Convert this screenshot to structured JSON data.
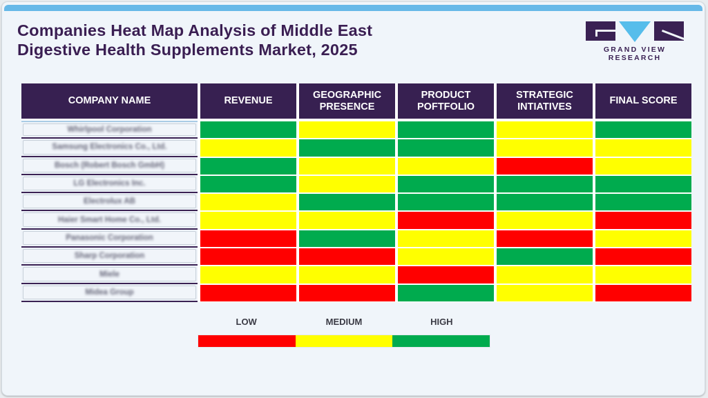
{
  "title": {
    "line1": "Companies Heat Map Analysis of Middle East",
    "line2": "Digestive Health Supplements Market, 2025"
  },
  "logo": {
    "brand": "GRAND VIEW RESEARCH",
    "purple": "#3a2153",
    "accent_blue": "#56bdeb"
  },
  "heatmap": {
    "columns": [
      "COMPANY NAME",
      "REVENUE",
      "GEOGRAPHIC PRESENCE",
      "PRODUCT POFTFOLIO",
      "STRATEGIC INTIATIVES",
      "FINAL SCORE"
    ],
    "levels": {
      "low": "#ff0000",
      "medium": "#ffff00",
      "high": "#00ab4e"
    },
    "rows": [
      {
        "company": "Whirlpool Corporation",
        "values": [
          "high",
          "medium",
          "high",
          "medium",
          "high"
        ]
      },
      {
        "company": "Samsung Electronics Co., Ltd.",
        "values": [
          "medium",
          "high",
          "high",
          "medium",
          "medium"
        ]
      },
      {
        "company": "Bosch (Robert Bosch GmbH)",
        "values": [
          "high",
          "medium",
          "medium",
          "low",
          "medium"
        ]
      },
      {
        "company": "LG Electronics Inc.",
        "values": [
          "high",
          "medium",
          "high",
          "high",
          "high"
        ]
      },
      {
        "company": "Electrolux AB",
        "values": [
          "medium",
          "high",
          "high",
          "high",
          "high"
        ]
      },
      {
        "company": "Haier Smart Home Co., Ltd.",
        "values": [
          "medium",
          "medium",
          "low",
          "medium",
          "low"
        ]
      },
      {
        "company": "Panasonic Corporation",
        "values": [
          "low",
          "high",
          "medium",
          "low",
          "medium"
        ]
      },
      {
        "company": "Sharp Corporation",
        "values": [
          "low",
          "low",
          "medium",
          "high",
          "low"
        ]
      },
      {
        "company": "Miele",
        "values": [
          "medium",
          "medium",
          "low",
          "medium",
          "medium"
        ]
      },
      {
        "company": "Midea Group",
        "values": [
          "low",
          "low",
          "high",
          "medium",
          "low"
        ]
      }
    ]
  },
  "legend": {
    "items": [
      {
        "label": "LOW",
        "level": "low",
        "color": "#ff0000"
      },
      {
        "label": "MEDIUM",
        "level": "medium",
        "color": "#ffff00"
      },
      {
        "label": "HIGH",
        "level": "high",
        "color": "#00ab4e"
      }
    ]
  },
  "chart_data": {
    "type": "heatmap",
    "title": "Companies Heat Map Analysis of Middle East Digestive Health Supplements Market, 2025",
    "columns": [
      "REVENUE",
      "GEOGRAPHIC PRESENCE",
      "PRODUCT POFTFOLIO",
      "STRATEGIC INTIATIVES",
      "FINAL SCORE"
    ],
    "rows": [
      "Whirlpool Corporation",
      "Samsung Electronics Co., Ltd.",
      "Bosch (Robert Bosch GmbH)",
      "LG Electronics Inc.",
      "Electrolux AB",
      "Haier Smart Home Co., Ltd.",
      "Panasonic Corporation",
      "Sharp Corporation",
      "Miele",
      "Midea Group"
    ],
    "values": [
      [
        "high",
        "medium",
        "high",
        "medium",
        "high"
      ],
      [
        "medium",
        "high",
        "high",
        "medium",
        "medium"
      ],
      [
        "high",
        "medium",
        "medium",
        "low",
        "medium"
      ],
      [
        "high",
        "medium",
        "high",
        "high",
        "high"
      ],
      [
        "medium",
        "high",
        "high",
        "high",
        "high"
      ],
      [
        "medium",
        "medium",
        "low",
        "medium",
        "low"
      ],
      [
        "low",
        "high",
        "medium",
        "low",
        "medium"
      ],
      [
        "low",
        "low",
        "medium",
        "high",
        "low"
      ],
      [
        "medium",
        "medium",
        "low",
        "medium",
        "medium"
      ],
      [
        "low",
        "low",
        "high",
        "medium",
        "low"
      ]
    ],
    "scale": {
      "LOW": "#ff0000",
      "MEDIUM": "#ffff00",
      "HIGH": "#00ab4e"
    },
    "legend_position": "bottom"
  }
}
